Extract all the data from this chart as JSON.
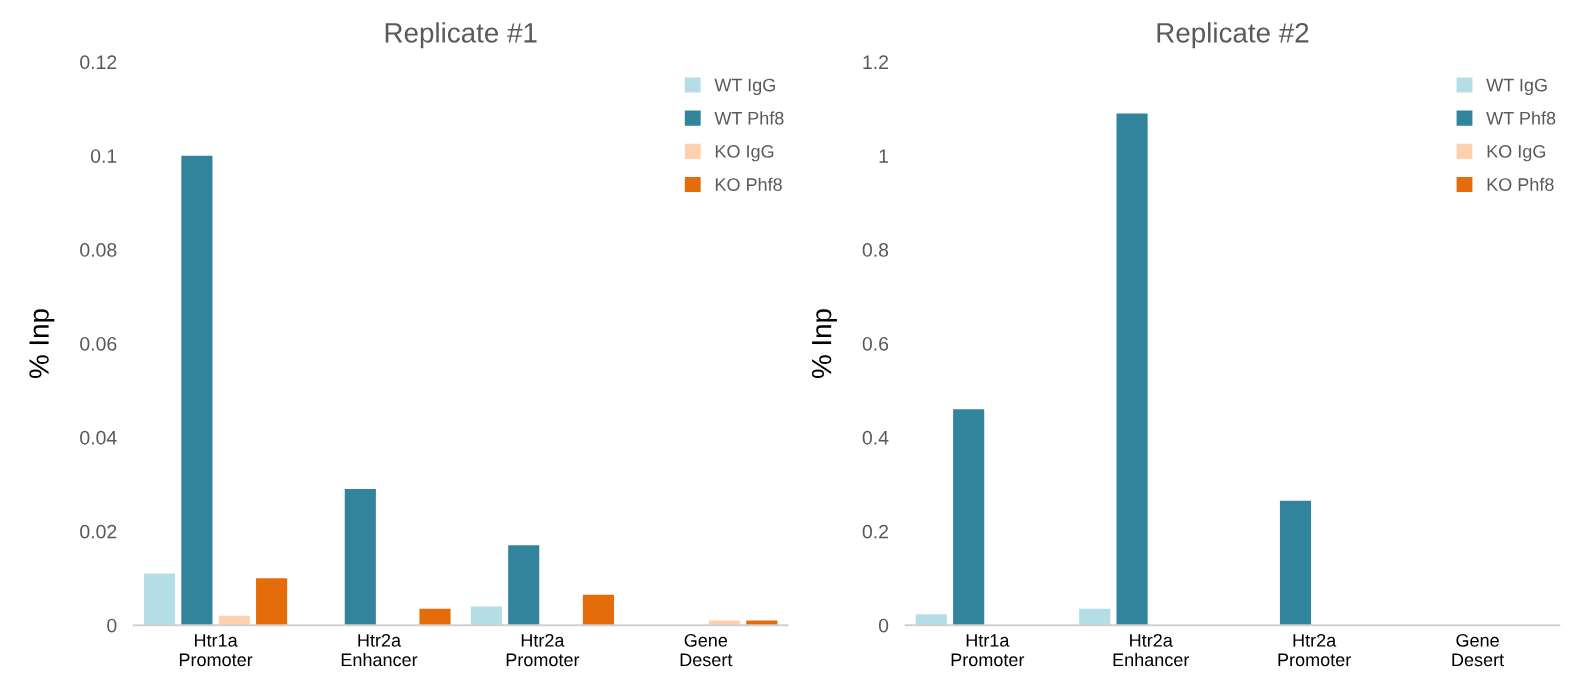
{
  "chart_data": [
    {
      "type": "bar",
      "title": "Replicate #1",
      "ylabel": "% Inp",
      "categories": [
        "Htr1a\nPromoter",
        "Htr2a\nEnhancer",
        "Htr2a\nPromoter",
        "Gene\nDesert"
      ],
      "series": [
        {
          "name": "WT IgG",
          "color": "#b4dde6",
          "values": [
            0.011,
            0,
            0.004,
            0
          ]
        },
        {
          "name": "WT Phf8",
          "color": "#31849b",
          "values": [
            0.1,
            0.029,
            0.017,
            0
          ]
        },
        {
          "name": "KO IgG",
          "color": "#fdd1b0",
          "values": [
            0.002,
            0,
            0,
            0.001
          ]
        },
        {
          "name": "KO Phf8",
          "color": "#e46c0a",
          "values": [
            0.01,
            0.0035,
            0.0065,
            0.001
          ]
        }
      ],
      "ylim": [
        0,
        0.12
      ],
      "yticks": [
        0,
        0.02,
        0.04,
        0.06,
        0.08,
        0.1,
        0.12
      ],
      "legend": "top right",
      "grid": false
    },
    {
      "type": "bar",
      "title": "Replicate #2",
      "ylabel": "% Inp",
      "categories": [
        "Htr1a\nPromoter",
        "Htr2a\nEnhancer",
        "Htr2a\nPromoter",
        "Gene\nDesert"
      ],
      "series": [
        {
          "name": "WT IgG",
          "color": "#b4dde6",
          "values": [
            0.023,
            0.035,
            0,
            0
          ]
        },
        {
          "name": "WT Phf8",
          "color": "#31849b",
          "values": [
            0.46,
            1.09,
            0.265,
            0
          ]
        },
        {
          "name": "KO IgG",
          "color": "#fdd1b0",
          "values": [
            0,
            0,
            0,
            0
          ]
        },
        {
          "name": "KO Phf8",
          "color": "#e46c0a",
          "values": [
            0,
            0,
            0,
            0
          ]
        }
      ],
      "ylim": [
        0,
        1.2
      ],
      "yticks": [
        0,
        0.2,
        0.4,
        0.6,
        0.8,
        1,
        1.2
      ],
      "legend": "top right",
      "grid": false
    }
  ]
}
